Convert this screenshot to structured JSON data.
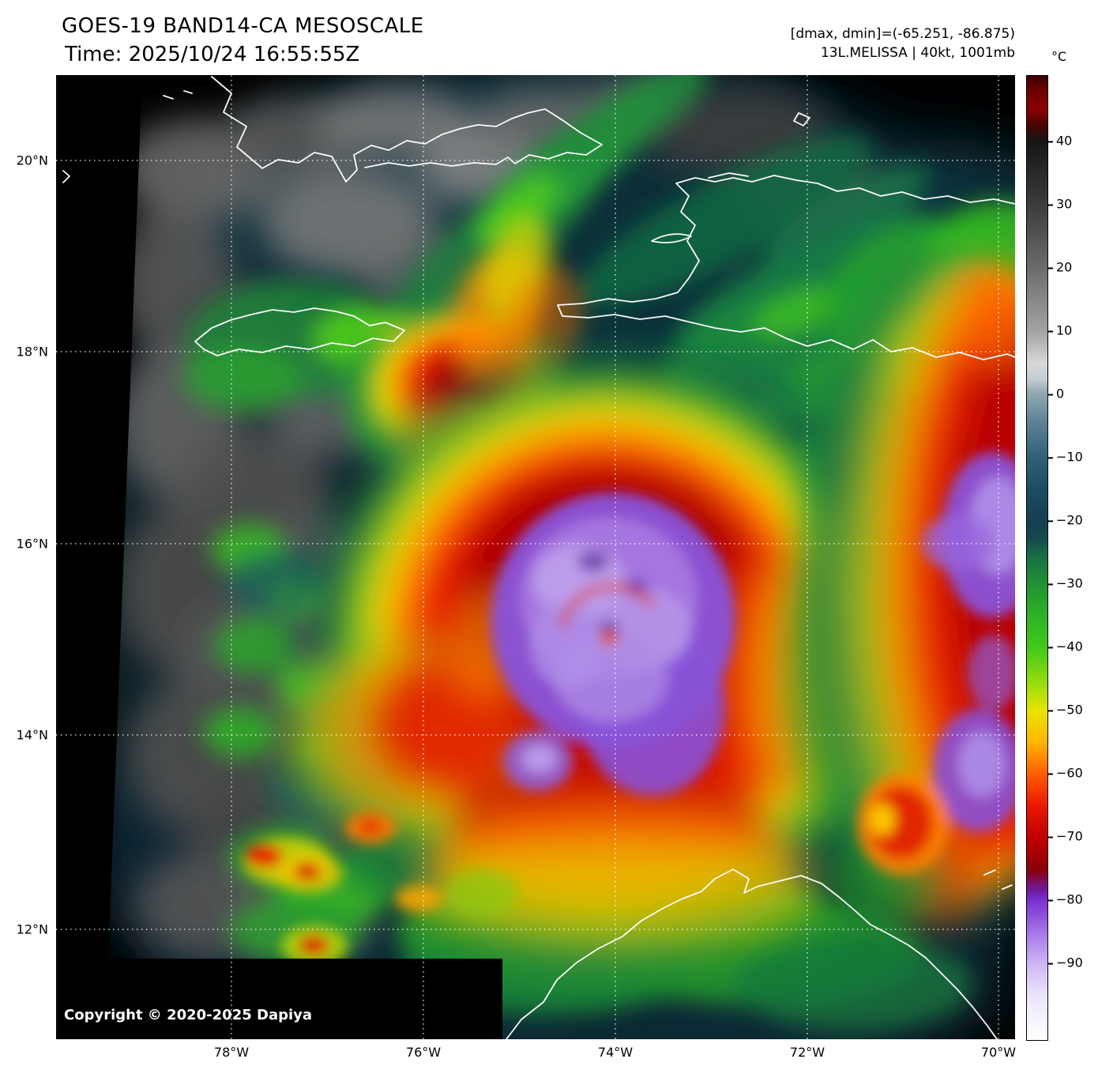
{
  "header": {
    "title": "GOES-19 BAND14-CA MESOSCALE",
    "time": "Time: 2025/10/24 16:55:55Z",
    "dmax_dmin": "[dmax, dmin]=(-65.251, -86.875)",
    "storm": "13L.MELISSA | 40kt, 1001mb"
  },
  "map": {
    "lat_labels": [
      "20°N",
      "18°N",
      "16°N",
      "14°N",
      "12°N"
    ],
    "lon_labels": [
      "78°W",
      "76°W",
      "74°W",
      "72°W",
      "70°W"
    ],
    "copyright": "Copyright © 2020-2025 Dapiya"
  },
  "colorbar": {
    "unit": "°C",
    "tick_values": [
      40,
      30,
      20,
      10,
      0,
      -10,
      -20,
      -30,
      -40,
      -50,
      -60,
      -70,
      -80,
      -90
    ],
    "tick_labels": [
      "40",
      "30",
      "20",
      "10",
      "0",
      "−10",
      "−20",
      "−30",
      "−40",
      "−50",
      "−60",
      "−70",
      "−80",
      "−90"
    ]
  },
  "colors": {
    "cold_core_purple": "#8a52d8",
    "deep_convection_red": "#e81400",
    "mid_cloud_green": "#23a228",
    "warm_ocean_teal": "#0e3440",
    "coastline": "#ffffff"
  }
}
